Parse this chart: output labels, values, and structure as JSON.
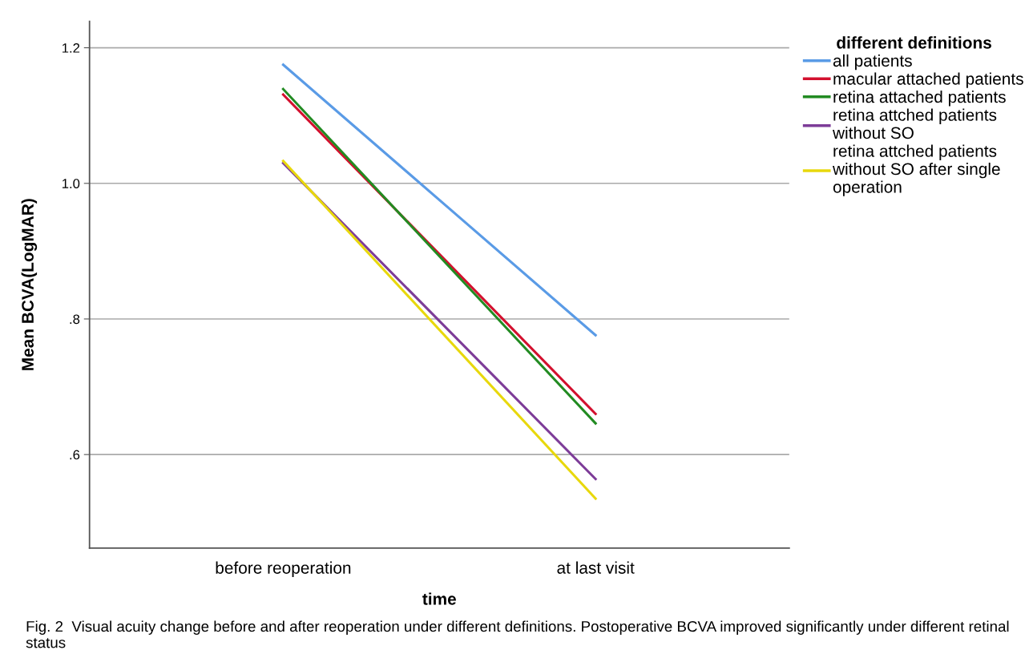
{
  "chart_data": {
    "type": "line",
    "xlabel": "time",
    "ylabel": "Mean BCVA(LogMAR)",
    "legend_title": "different definitions",
    "categories": [
      "before reoperation",
      "at last visit"
    ],
    "series": [
      {
        "name": "all patients",
        "color": "#5a9be6",
        "values": [
          1.175,
          0.776
        ]
      },
      {
        "name": "macular attached patients",
        "color": "#d3102e",
        "values": [
          1.131,
          0.66
        ]
      },
      {
        "name": "retina attached patients",
        "color": "#228b22",
        "values": [
          1.139,
          0.646
        ]
      },
      {
        "name": "retina attched patients\nwithout SO",
        "color": "#7d3c98",
        "values": [
          1.03,
          0.564
        ]
      },
      {
        "name": "retina attched patients\nwithout SO after single\noperation",
        "color": "#e8d80c",
        "values": [
          1.033,
          0.535
        ]
      }
    ],
    "ylim": [
      0.462,
      1.239
    ],
    "yticks": [
      {
        "value": 0.6,
        "label": ".6"
      },
      {
        "value": 0.8,
        "label": ".8"
      },
      {
        "value": 1.0,
        "label": "1.0"
      },
      {
        "value": 1.2,
        "label": "1.2"
      }
    ],
    "grid": "y",
    "legend": "right",
    "marker": "none",
    "line_style": "solid",
    "annotations": [
      "Fig. 2  Visual acuity change before and after reoperation under different definitions. Postoperative BCVA improved significantly under different retinal status"
    ]
  }
}
